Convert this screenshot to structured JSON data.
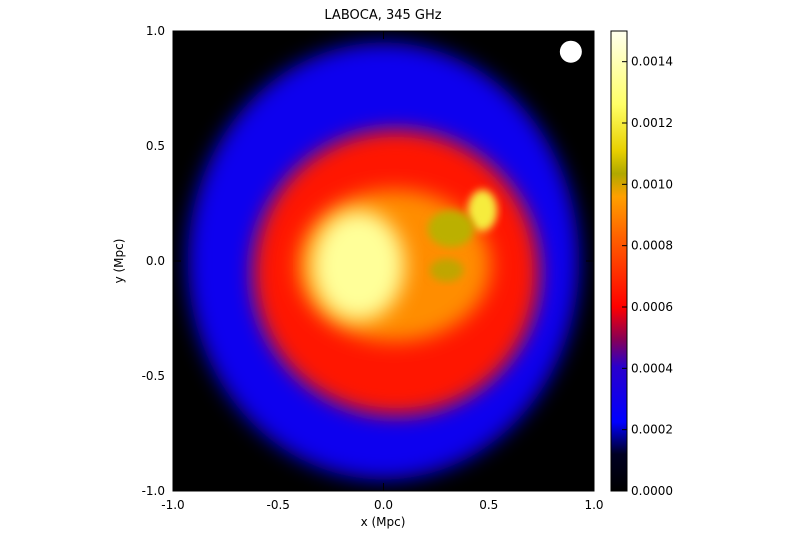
{
  "chart_data": {
    "type": "heatmap",
    "title": "LABOCA, 345 GHz",
    "xlabel": "x (Mpc)",
    "ylabel": "y (Mpc)",
    "xlim": [
      -1.0,
      1.0
    ],
    "ylim": [
      -1.0,
      1.0
    ],
    "x_ticks": [
      "-1.0",
      "-0.5",
      "0.0",
      "0.5",
      "1.0"
    ],
    "y_ticks": [
      "-1.0",
      "-0.5",
      "0.0",
      "0.5",
      "1.0"
    ],
    "colorbar": {
      "range": [
        0.0,
        0.0015
      ],
      "ticks": [
        "0.0000",
        "0.0002",
        "0.0004",
        "0.0006",
        "0.0008",
        "0.0010",
        "0.0012",
        "0.0014"
      ],
      "colors": [
        "#000000",
        "#0000ff",
        "#aa0044",
        "#ff0000",
        "#ff8800",
        "#aaaa00",
        "#ffff66",
        "#ffffee"
      ]
    },
    "beam_marker": {
      "x": 0.89,
      "y": 0.91,
      "color": "#ffffff"
    },
    "features": [
      {
        "name": "halo",
        "x": 0.0,
        "y": 0.0,
        "rx": 0.93,
        "ry": 0.95,
        "level": 0.00028
      },
      {
        "name": "envelope",
        "x": 0.06,
        "y": -0.05,
        "rx": 0.68,
        "ry": 0.62,
        "level": 0.00065
      },
      {
        "name": "inner",
        "x": 0.05,
        "y": -0.02,
        "rx": 0.46,
        "ry": 0.33,
        "level": 0.00092
      },
      {
        "name": "core",
        "x": -0.12,
        "y": -0.02,
        "rx": 0.22,
        "ry": 0.24,
        "level": 0.00135
      },
      {
        "name": "east-knot",
        "x": 0.47,
        "y": 0.22,
        "rx": 0.07,
        "ry": 0.09,
        "level": 0.0012
      },
      {
        "name": "middle-knot",
        "x": 0.32,
        "y": 0.14,
        "rx": 0.11,
        "ry": 0.08,
        "level": 0.00105
      },
      {
        "name": "lower-knot",
        "x": 0.3,
        "y": -0.04,
        "rx": 0.08,
        "ry": 0.05,
        "level": 0.00102
      }
    ]
  }
}
